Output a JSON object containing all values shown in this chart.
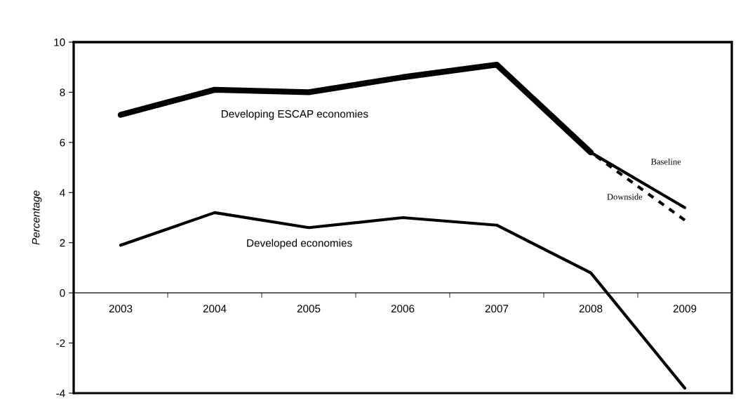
{
  "chart_data": {
    "type": "line",
    "ylabel": "Percentage",
    "categories": [
      "2003",
      "2004",
      "2005",
      "2006",
      "2007",
      "2008",
      "2009"
    ],
    "series": [
      {
        "name": "Developing ESCAP economies",
        "color": "#000000",
        "values": [
          7.1,
          8.1,
          8.0,
          8.6,
          9.1,
          5.6,
          null
        ]
      },
      {
        "name": "Baseline",
        "color": "#000000",
        "values": [
          null,
          null,
          null,
          null,
          null,
          5.6,
          3.4
        ]
      },
      {
        "name": "Downside",
        "color": "#000000",
        "line_style": "dashed",
        "values": [
          null,
          null,
          null,
          null,
          null,
          5.6,
          2.9
        ]
      },
      {
        "name": "Developed economies",
        "color": "#000000",
        "values": [
          1.9,
          3.2,
          2.6,
          3.0,
          2.7,
          0.8,
          -3.8
        ]
      }
    ],
    "ylim": [
      -4,
      10
    ],
    "yticks": [
      -4,
      -2,
      0,
      2,
      4,
      6,
      8,
      10
    ],
    "grid": false,
    "legend": false,
    "marker": "none",
    "line_style": "solid"
  }
}
